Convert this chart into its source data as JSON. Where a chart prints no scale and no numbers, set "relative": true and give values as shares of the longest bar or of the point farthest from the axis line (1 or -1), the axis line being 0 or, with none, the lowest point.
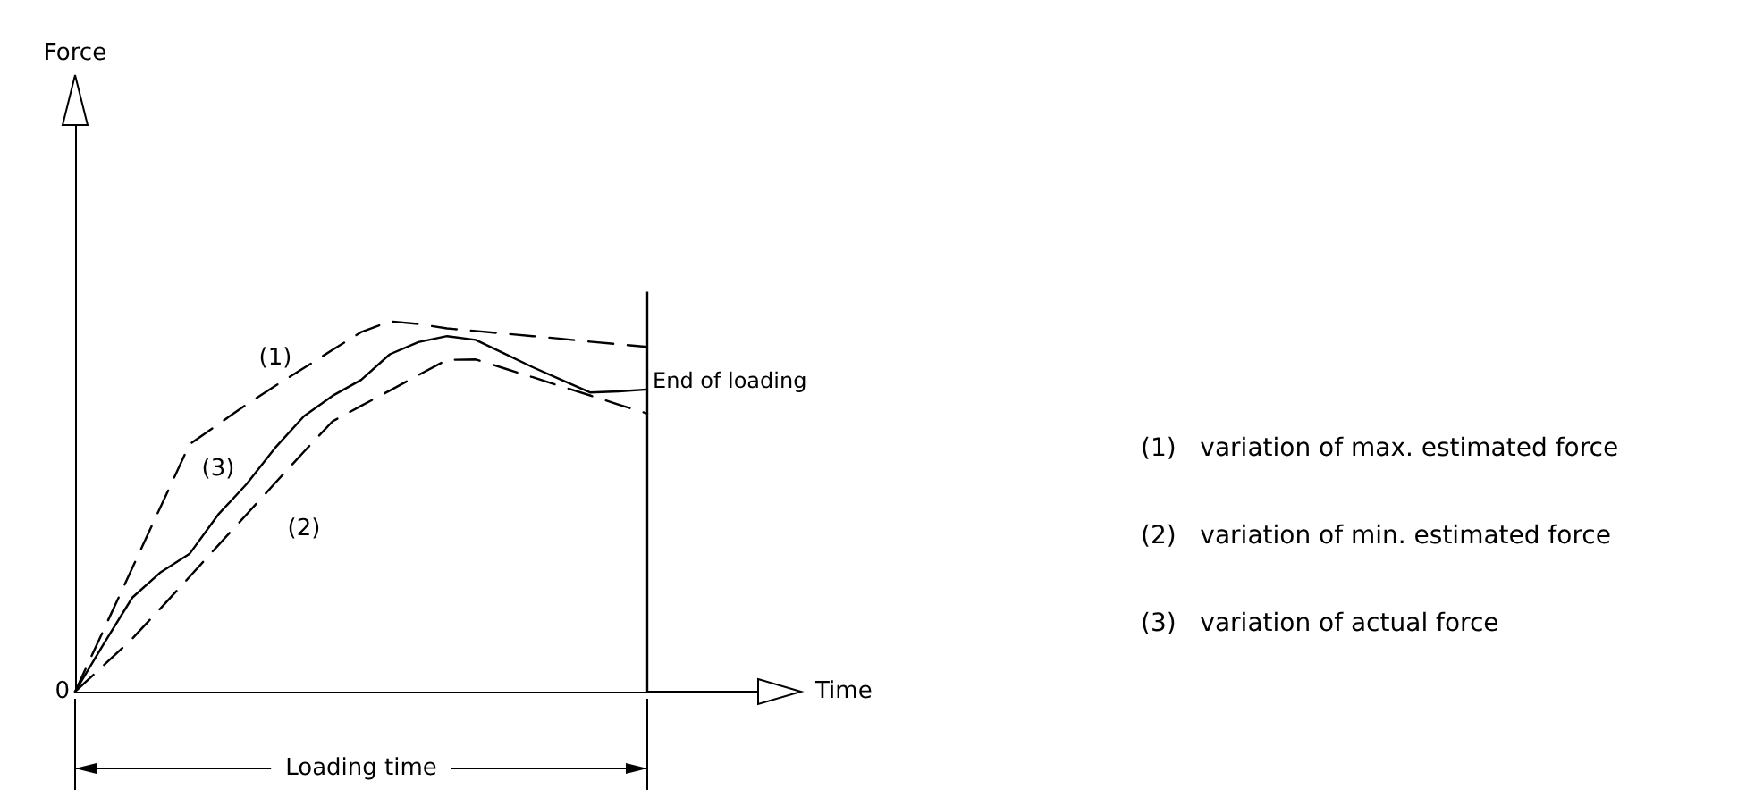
{
  "chart_data": {
    "type": "line",
    "relative": true,
    "categories": [
      null,
      null,
      null,
      null,
      null,
      null,
      null,
      null,
      null,
      null,
      null,
      null,
      null,
      null,
      null,
      null,
      null,
      null,
      null,
      null,
      null
    ],
    "series": [
      {
        "name": "(1)",
        "color": "#000000",
        "line_style": "dashed",
        "values": [
          0,
          0.167,
          0.334,
          0.501,
          0.668,
          0.722,
          0.776,
          0.826,
          0.874,
          0.923,
          0.971,
          1.0,
          0.993,
          0.981,
          0.974,
          0.967,
          0.96,
          0.953,
          0.945,
          0.938,
          0.931
        ]
      },
      {
        "name": "(2)",
        "color": "#000000",
        "line_style": "dashed",
        "values": [
          0,
          0.071,
          0.143,
          0.226,
          0.31,
          0.395,
          0.479,
          0.564,
          0.648,
          0.73,
          0.772,
          0.813,
          0.855,
          0.896,
          0.897,
          0.873,
          0.849,
          0.824,
          0.8,
          0.775,
          0.751
        ]
      },
      {
        "name": "(3)",
        "color": "#000000",
        "line_style": "solid",
        "values": [
          0,
          0.129,
          0.254,
          0.323,
          0.372,
          0.478,
          0.561,
          0.659,
          0.744,
          0.799,
          0.842,
          0.911,
          0.944,
          0.96,
          0.95,
          0.913,
          0.876,
          0.842,
          0.808,
          0.811,
          0.816
        ]
      }
    ],
    "marker": "none",
    "grid": false,
    "legend": false,
    "annotations": [
      "Force",
      "Time",
      "0",
      "Loading time",
      "End of loading",
      "(1)   variation of max. estimated force",
      "(2)   variation of min. estimated force",
      "(3)   variation of actual force"
    ]
  }
}
